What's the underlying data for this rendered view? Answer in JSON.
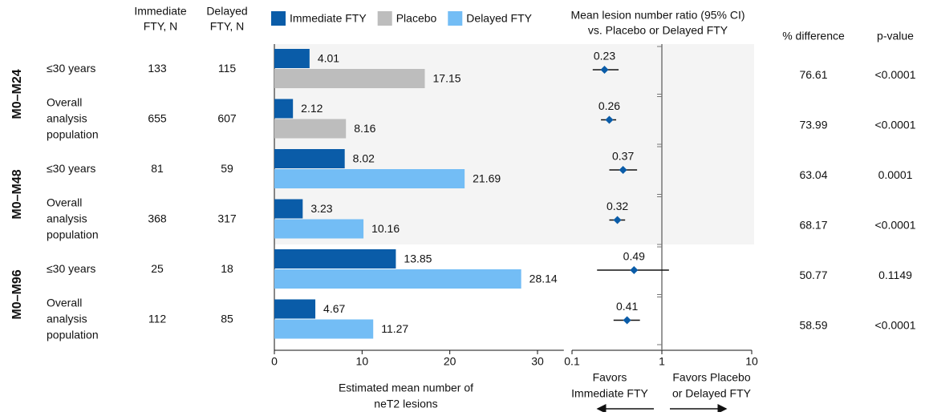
{
  "table": {
    "headers": {
      "immediate_n": [
        "Immediate",
        "FTY, N"
      ],
      "delayed_n": [
        "Delayed",
        "FTY, N"
      ],
      "pct_diff": "% difference",
      "p_value": "p-value"
    },
    "periods": [
      "M0–M24",
      "M0–M48",
      "M0–M96"
    ],
    "rows": [
      {
        "label": [
          "≤30 years"
        ],
        "immediate_n": 133,
        "delayed_n": 115,
        "pct_diff": 76.61,
        "p_value": "<0.0001"
      },
      {
        "label": [
          "Overall",
          "analysis",
          "population"
        ],
        "immediate_n": 655,
        "delayed_n": 607,
        "pct_diff": 73.99,
        "p_value": "<0.0001"
      },
      {
        "label": [
          "≤30 years"
        ],
        "immediate_n": 81,
        "delayed_n": 59,
        "pct_diff": 63.04,
        "p_value": "0.0001"
      },
      {
        "label": [
          "Overall",
          "analysis",
          "population"
        ],
        "immediate_n": 368,
        "delayed_n": 317,
        "pct_diff": 68.17,
        "p_value": "<0.0001"
      },
      {
        "label": [
          "≤30 years"
        ],
        "immediate_n": 25,
        "delayed_n": 18,
        "pct_diff": 50.77,
        "p_value": "0.1149"
      },
      {
        "label": [
          "Overall",
          "analysis",
          "population"
        ],
        "immediate_n": 112,
        "delayed_n": 85,
        "pct_diff": 58.59,
        "p_value": "<0.0001"
      }
    ]
  },
  "chart_data": [
    {
      "type": "hbar",
      "x_label": [
        "Estimated mean number of",
        "neT2 lesions"
      ],
      "series": [
        {
          "name": "Immediate FTY",
          "color": "#0a5ca8",
          "values": [
            4.01,
            2.12,
            8.02,
            3.23,
            13.85,
            4.67
          ]
        },
        {
          "name": "Placebo",
          "color": "#bdbdbd",
          "values": [
            17.15,
            8.16,
            null,
            null,
            null,
            null
          ]
        },
        {
          "name": "Delayed FTY",
          "color": "#73bdf5",
          "values": [
            null,
            null,
            21.69,
            10.16,
            28.14,
            11.27
          ]
        }
      ],
      "xlim": [
        0,
        33
      ],
      "xticks": [
        0,
        10,
        20,
        30
      ]
    },
    {
      "type": "forest",
      "title": [
        "Mean lesion number ratio (95% CI)",
        "vs. Placebo or Delayed FTY"
      ],
      "values": [
        0.23,
        0.26,
        0.37,
        0.32,
        0.49,
        0.41
      ],
      "ci_low": [
        0.17,
        0.21,
        0.26,
        0.26,
        0.19,
        0.29
      ],
      "ci_high": [
        0.33,
        0.31,
        0.53,
        0.39,
        1.2,
        0.57
      ],
      "color": "#0a5ca8",
      "log_x": true,
      "xlim": [
        0.1,
        10
      ],
      "xticks": [
        0.1,
        1,
        10
      ],
      "reference_line": 1,
      "annotations": [
        [
          "Favors",
          "Immediate FTY"
        ],
        [
          "Favors Placebo",
          "or Delayed FTY"
        ]
      ]
    }
  ]
}
